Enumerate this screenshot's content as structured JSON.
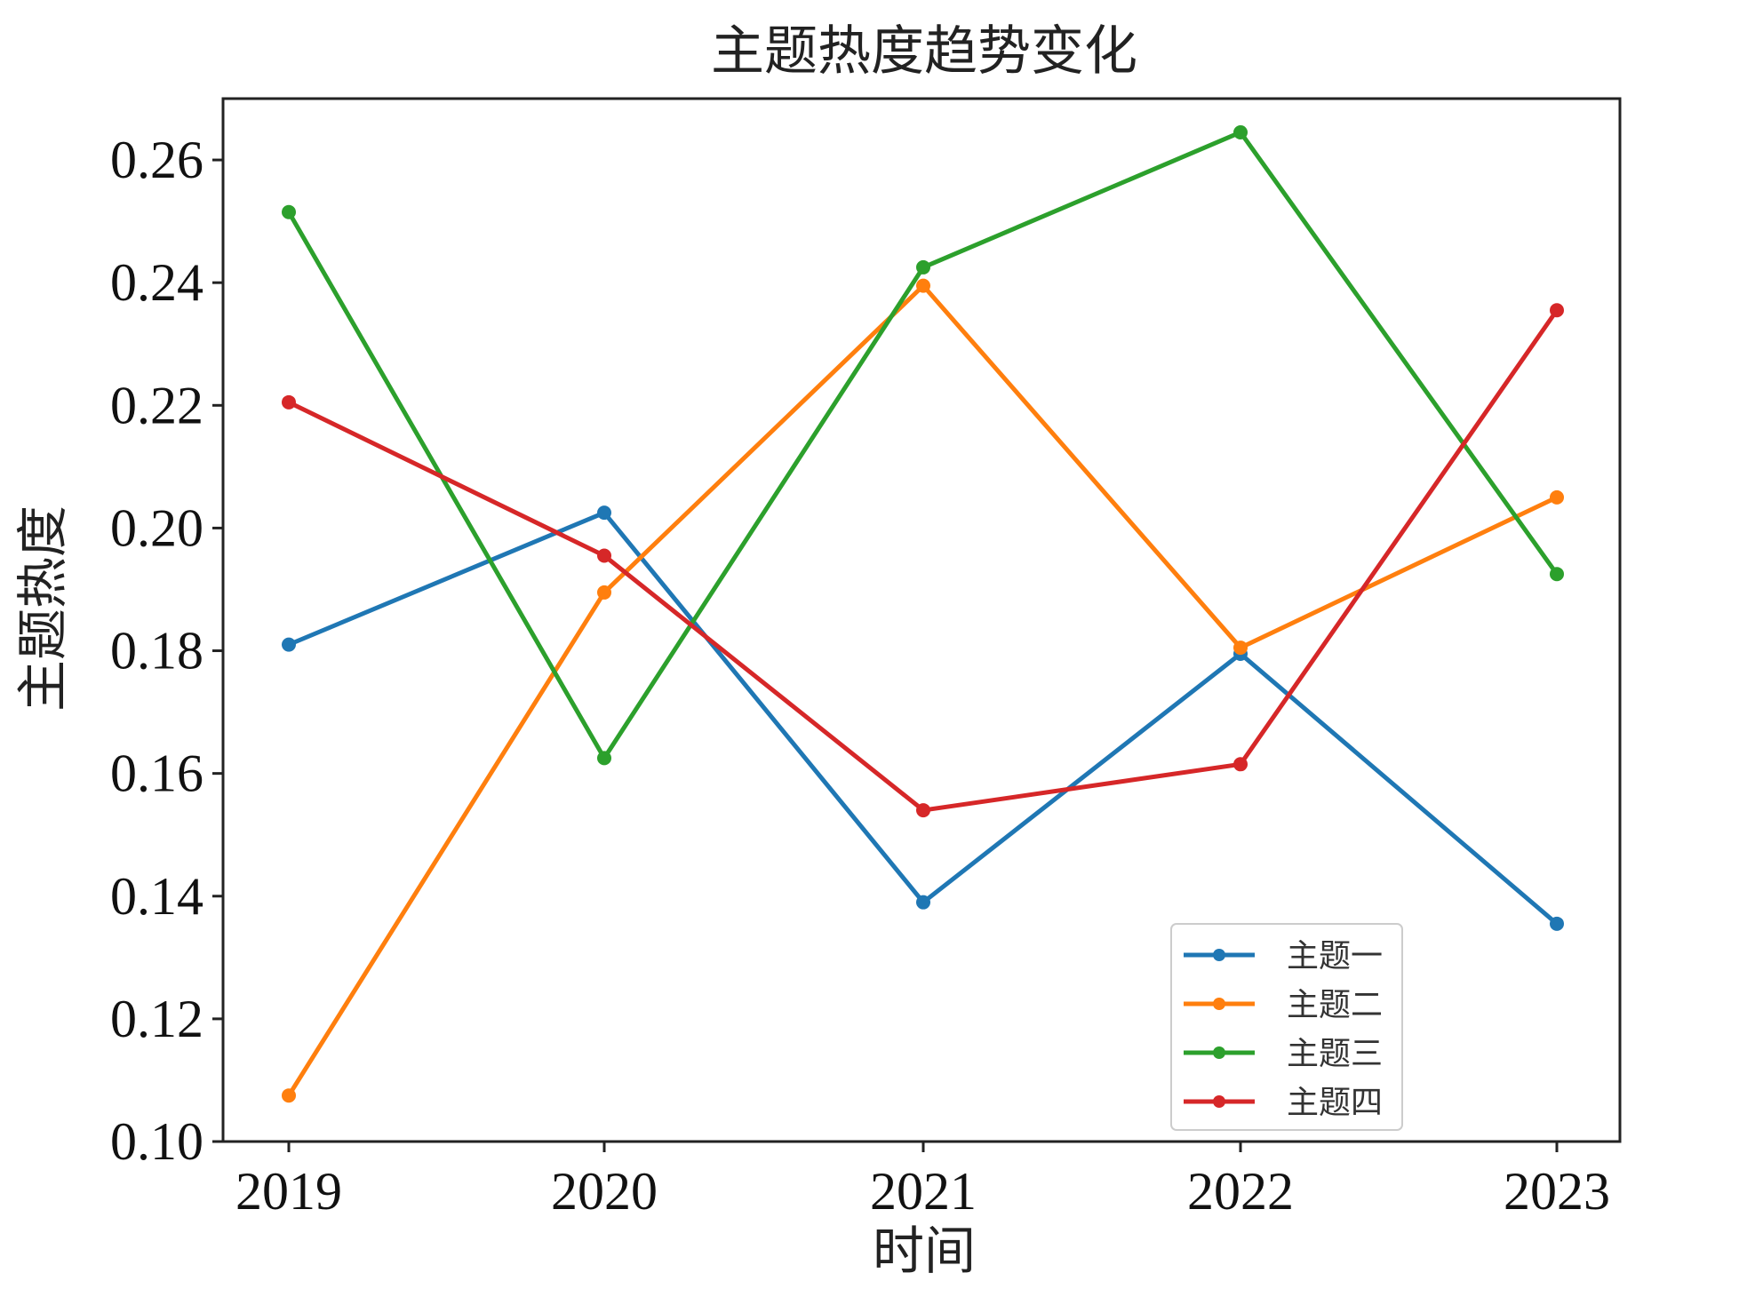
{
  "chart_data": {
    "type": "line",
    "title": "主题热度趋势变化",
    "xlabel": "时间",
    "ylabel": "主题热度",
    "categories": [
      "2019",
      "2020",
      "2021",
      "2022",
      "2023"
    ],
    "ylim": [
      0.1,
      0.27
    ],
    "yticks": [
      "0.10",
      "0.12",
      "0.14",
      "0.16",
      "0.18",
      "0.20",
      "0.22",
      "0.24",
      "0.26"
    ],
    "grid": false,
    "legend_position": "bottom-right",
    "series": [
      {
        "name": "主题一",
        "color": "#1f77b4",
        "values": [
          0.181,
          0.2025,
          0.139,
          0.1795,
          0.1355
        ]
      },
      {
        "name": "主题二",
        "color": "#ff7f0e",
        "values": [
          0.1075,
          0.1895,
          0.2395,
          0.1805,
          0.205
        ]
      },
      {
        "name": "主题三",
        "color": "#2ca02c",
        "values": [
          0.2515,
          0.1625,
          0.2425,
          0.2645,
          0.1925
        ]
      },
      {
        "name": "主题四",
        "color": "#d62728",
        "values": [
          0.2205,
          0.1955,
          0.154,
          0.1615,
          0.2355
        ]
      }
    ]
  }
}
